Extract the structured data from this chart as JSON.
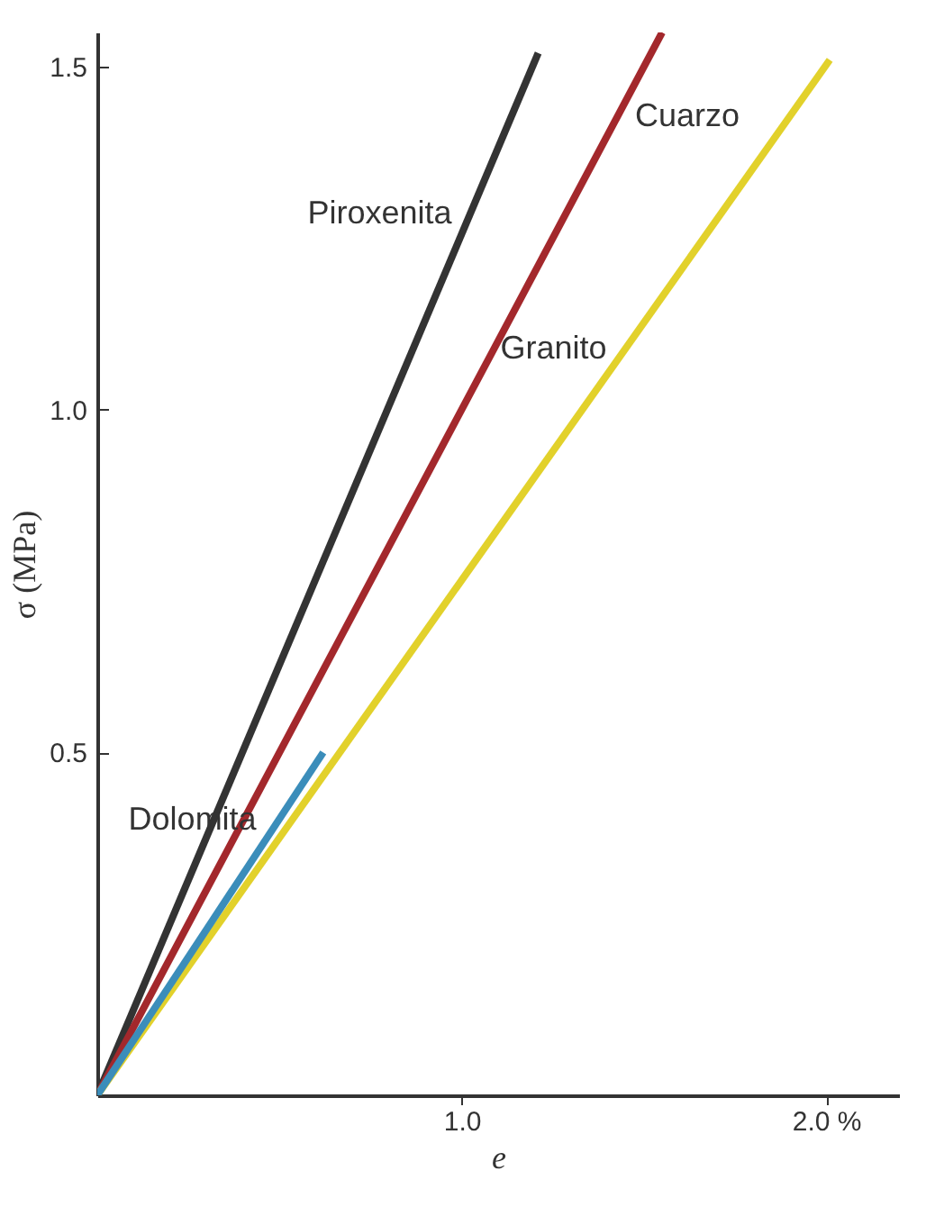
{
  "chart_data": {
    "type": "line",
    "xlabel": "e",
    "ylabel": "σ (MPa)",
    "xlim": [
      0,
      2.2
    ],
    "ylim": [
      0,
      1.55
    ],
    "xticks": [
      {
        "value": 1.0,
        "label": "1.0"
      },
      {
        "value": 2.0,
        "label": "2.0  %"
      }
    ],
    "yticks": [
      {
        "value": 0.5,
        "label": "0.5"
      },
      {
        "value": 1.0,
        "label": "1.0"
      },
      {
        "value": 1.5,
        "label": "1.5"
      }
    ],
    "grid": false,
    "legend": false,
    "marker": "none",
    "line_style": "solid",
    "series": [
      {
        "name": "Piroxenita",
        "color": "#333333",
        "x": [
          0,
          1.21
        ],
        "values": [
          0,
          1.52
        ]
      },
      {
        "name": "Cuarzo",
        "color": "#a3282c",
        "x": [
          0,
          1.55
        ],
        "values": [
          0,
          1.55
        ]
      },
      {
        "name": "Granito",
        "color": "#e2d12b",
        "x": [
          0,
          2.01
        ],
        "values": [
          0,
          1.51
        ]
      },
      {
        "name": "Dolomita",
        "color": "#3b8dba",
        "x": [
          0,
          0.62
        ],
        "values": [
          0,
          0.5
        ]
      }
    ]
  }
}
